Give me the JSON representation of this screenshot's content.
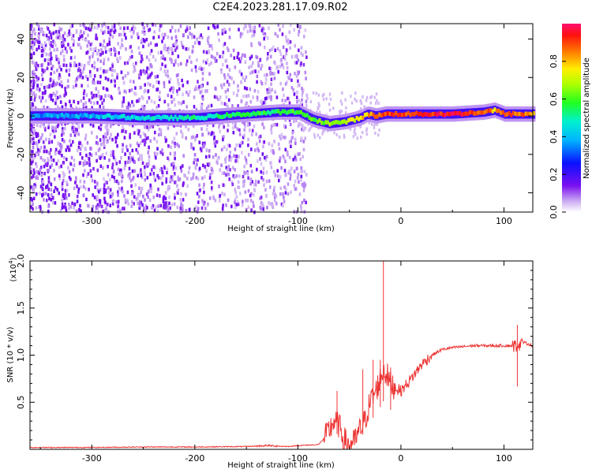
{
  "title": "C2E4.2023.281.17.09.R02",
  "colors": {
    "snr_line": "#ee3333",
    "spectrogram_ridge_start": "#1fd0e0",
    "spectrogram_ridge_end": "#ff2000",
    "background_scatter": "#7a2df0"
  },
  "chart_data": [
    {
      "type": "heatmap",
      "xlabel": "Height of straight line (km)",
      "ylabel": "Frequency (Hz)",
      "xlim": [
        -360,
        128
      ],
      "ylim": [
        -50,
        48
      ],
      "xticks": [
        -300,
        -200,
        -100,
        0,
        100
      ],
      "xtick_labels": [
        "-300",
        "-200",
        "-100",
        "0",
        "100"
      ],
      "yticks": [
        -40,
        -20,
        0,
        20,
        40
      ],
      "ytick_labels": [
        "-40",
        "-20",
        "0",
        "20",
        "40"
      ],
      "colorbar": {
        "label": "Normalized spectral amplitude",
        "range": [
          0,
          1
        ],
        "ticks": [
          0.0,
          0.2,
          0.4,
          0.6,
          0.8
        ],
        "tick_labels": [
          "0.0",
          "0.2",
          "0.4",
          "0.6",
          "0.8"
        ]
      },
      "ridge": {
        "x": [
          -360,
          -300,
          -250,
          -200,
          -150,
          -120,
          -100,
          -85,
          -70,
          -55,
          -40,
          -33,
          -25,
          -15,
          0,
          50,
          80,
          90,
          100,
          128
        ],
        "frequency": [
          0,
          0,
          -1,
          -1,
          1,
          2,
          2,
          -2,
          -4,
          -3,
          -1,
          1,
          0,
          1,
          1,
          1,
          2,
          3,
          1,
          1
        ],
        "amplitude": [
          0.35,
          0.4,
          0.45,
          0.5,
          0.55,
          0.55,
          0.6,
          0.6,
          0.65,
          0.7,
          0.75,
          0.8,
          0.85,
          0.9,
          0.9,
          0.95,
          0.9,
          0.8,
          0.9,
          0.85
        ]
      },
      "noise_cutoff_x": -100
    },
    {
      "type": "line",
      "xlabel": "Height of straight line (km)",
      "ylabel": "SNR (10 * v/v)",
      "scale_note": "(x10",
      "scale_exponent": "4",
      "scale_close": ")",
      "xlim": [
        -360,
        128
      ],
      "ylim": [
        0,
        2.0
      ],
      "xticks": [
        -300,
        -200,
        -100,
        0,
        100
      ],
      "xtick_labels": [
        "-300",
        "-200",
        "-100",
        "0",
        "100"
      ],
      "yticks": [
        0.5,
        1.0,
        1.5,
        2.0
      ],
      "ytick_labels": [
        "0.5",
        "1.0",
        "1.5",
        "2.0"
      ],
      "series": [
        {
          "x": [
            -360,
            -300,
            -250,
            -200,
            -150,
            -130,
            -110,
            -100,
            -80,
            -72,
            -65,
            -60,
            -55,
            -50,
            -45,
            -40,
            -35,
            -30,
            -25,
            -20,
            -17,
            -14,
            -10,
            -5,
            0,
            10,
            20,
            30,
            40,
            50,
            60,
            70,
            80,
            90,
            100,
            110,
            115,
            118,
            128
          ],
          "values": [
            0.02,
            0.02,
            0.025,
            0.025,
            0.03,
            0.04,
            0.03,
            0.04,
            0.05,
            0.15,
            0.3,
            0.25,
            0.1,
            0.05,
            0.08,
            0.2,
            0.3,
            0.5,
            0.6,
            0.75,
            0.85,
            0.8,
            0.7,
            0.65,
            0.62,
            0.75,
            0.9,
            1.0,
            1.06,
            1.08,
            1.09,
            1.1,
            1.1,
            1.1,
            1.1,
            1.1,
            1.12,
            1.14,
            1.1
          ]
        }
      ],
      "spikes": [
        {
          "x": -17,
          "value": 2.0
        },
        {
          "x": -62,
          "value": 0.62
        },
        {
          "x": -37,
          "value": 0.85
        },
        {
          "x": -27,
          "value": 0.95
        },
        {
          "x": -20,
          "value": 0.95
        },
        {
          "x": -10,
          "value": 0.87
        },
        {
          "x": 113,
          "value": 1.32
        }
      ]
    }
  ]
}
